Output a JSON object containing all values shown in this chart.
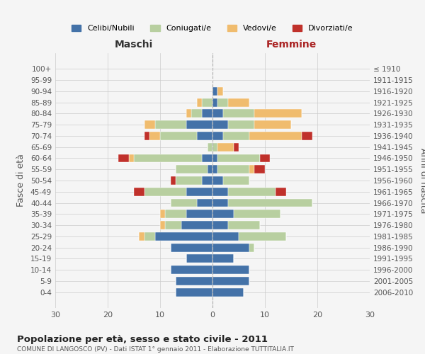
{
  "age_groups": [
    "0-4",
    "5-9",
    "10-14",
    "15-19",
    "20-24",
    "25-29",
    "30-34",
    "35-39",
    "40-44",
    "45-49",
    "50-54",
    "55-59",
    "60-64",
    "65-69",
    "70-74",
    "75-79",
    "80-84",
    "85-89",
    "90-94",
    "95-99",
    "100+"
  ],
  "birth_years": [
    "2006-2010",
    "2001-2005",
    "1996-2000",
    "1991-1995",
    "1986-1990",
    "1981-1985",
    "1976-1980",
    "1971-1975",
    "1966-1970",
    "1961-1965",
    "1956-1960",
    "1951-1955",
    "1946-1950",
    "1941-1945",
    "1936-1940",
    "1931-1935",
    "1926-1930",
    "1921-1925",
    "1916-1920",
    "1911-1915",
    "≤ 1910"
  ],
  "male": {
    "celibi": [
      7,
      7,
      8,
      5,
      8,
      11,
      6,
      5,
      3,
      5,
      2,
      1,
      2,
      0,
      3,
      5,
      2,
      0,
      0,
      0,
      0
    ],
    "coniugati": [
      0,
      0,
      0,
      0,
      0,
      2,
      3,
      4,
      5,
      8,
      5,
      6,
      13,
      1,
      7,
      6,
      2,
      2,
      0,
      0,
      0
    ],
    "vedovi": [
      0,
      0,
      0,
      0,
      0,
      1,
      1,
      1,
      0,
      0,
      0,
      0,
      1,
      0,
      2,
      2,
      1,
      1,
      0,
      0,
      0
    ],
    "divorziati": [
      0,
      0,
      0,
      0,
      0,
      0,
      0,
      0,
      0,
      2,
      1,
      0,
      2,
      0,
      1,
      0,
      0,
      0,
      0,
      0,
      0
    ]
  },
  "female": {
    "nubili": [
      6,
      7,
      7,
      4,
      7,
      5,
      3,
      4,
      3,
      3,
      2,
      1,
      1,
      0,
      2,
      3,
      2,
      1,
      1,
      0,
      0
    ],
    "coniugate": [
      0,
      0,
      0,
      0,
      1,
      9,
      6,
      9,
      16,
      9,
      5,
      6,
      8,
      1,
      5,
      5,
      6,
      2,
      0,
      0,
      0
    ],
    "vedove": [
      0,
      0,
      0,
      0,
      0,
      0,
      0,
      0,
      0,
      0,
      0,
      1,
      0,
      3,
      10,
      7,
      9,
      4,
      1,
      0,
      0
    ],
    "divorziate": [
      0,
      0,
      0,
      0,
      0,
      0,
      0,
      0,
      0,
      2,
      0,
      2,
      2,
      1,
      2,
      0,
      0,
      0,
      0,
      0,
      0
    ]
  },
  "colors": {
    "celibi_nubili": "#4472a8",
    "coniugati": "#b8cfa0",
    "vedovi": "#f0bc6e",
    "divorziati": "#c0312b"
  },
  "title": "Popolazione per età, sesso e stato civile - 2011",
  "subtitle": "COMUNE DI LANGOSCO (PV) - Dati ISTAT 1° gennaio 2011 - Elaborazione TUTTITALIA.IT",
  "xlabel_left": "Maschi",
  "xlabel_right": "Femmine",
  "ylabel_left": "Fasce di età",
  "ylabel_right": "Anni di nascita",
  "xlim": 30,
  "legend_labels": [
    "Celibi/Nubili",
    "Coniugati/e",
    "Vedovi/e",
    "Divorziati/e"
  ],
  "background_color": "#f5f5f5",
  "maschi_color": "#333333",
  "femmine_color": "#aa2222"
}
